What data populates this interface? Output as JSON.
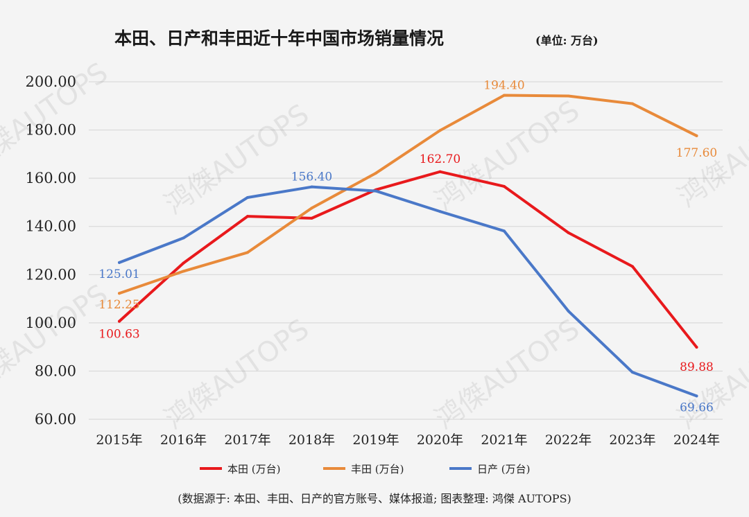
{
  "chart_data": {
    "type": "line",
    "title": "本田、日产和丰田近十年中国市场销量情况",
    "subtitle": "(单位: 万台)",
    "categories": [
      "2015年",
      "2016年",
      "2017年",
      "2018年",
      "2019年",
      "2020年",
      "2021年",
      "2022年",
      "2023年",
      "2024年"
    ],
    "ylim": [
      60,
      200
    ],
    "yticks": [
      "60.00",
      "80.00",
      "100.00",
      "120.00",
      "140.00",
      "160.00",
      "180.00",
      "200.00"
    ],
    "grid": true,
    "legend_position": "bottom",
    "series": [
      {
        "name": "本田 (万台)",
        "color": "#e8191c",
        "values": [
          100.63,
          124.8,
          144.2,
          143.4,
          155.2,
          162.7,
          156.6,
          137.4,
          123.4,
          89.88
        ],
        "labels": [
          {
            "index": 0,
            "text": "100.63"
          },
          {
            "index": 5,
            "text": "162.70"
          },
          {
            "index": 9,
            "text": "89.88"
          }
        ]
      },
      {
        "name": "丰田 (万台)",
        "color": "#e88a3a",
        "values": [
          112.25,
          121.4,
          129.2,
          147.6,
          162.1,
          179.8,
          194.4,
          194.1,
          190.9,
          177.6
        ],
        "labels": [
          {
            "index": 0,
            "text": "112.25"
          },
          {
            "index": 6,
            "text": "194.40"
          },
          {
            "index": 9,
            "text": "177.60"
          }
        ]
      },
      {
        "name": "日产 (万台)",
        "color": "#4a78c8",
        "values": [
          125.01,
          135.2,
          152.0,
          156.4,
          154.7,
          146.2,
          138.1,
          104.9,
          79.5,
          69.66
        ],
        "labels": [
          {
            "index": 0,
            "text": "125.01"
          },
          {
            "index": 3,
            "text": "156.40"
          },
          {
            "index": 9,
            "text": "69.66"
          }
        ]
      }
    ]
  },
  "source_note": "(数据源于: 本田、丰田、日产的官方账号、媒体报道; 图表整理: 鸿傑 AUTOPS)",
  "watermark": "鸿傑AUTOPS"
}
